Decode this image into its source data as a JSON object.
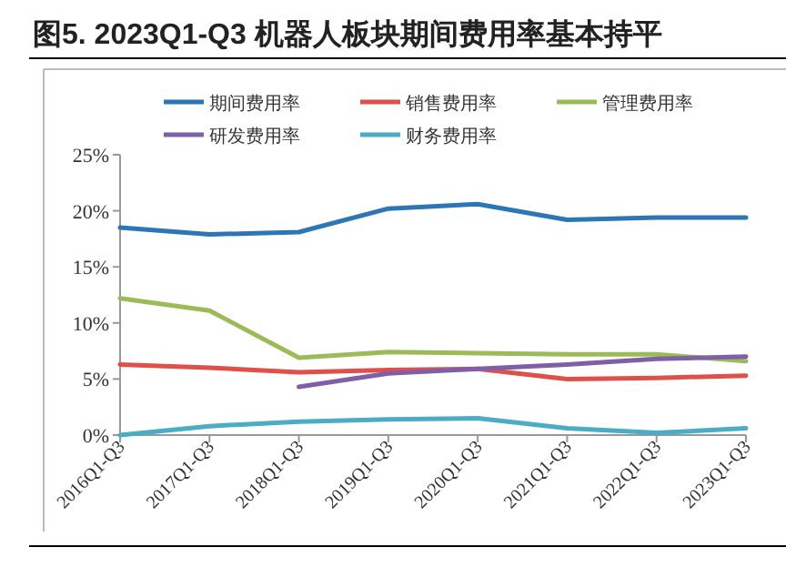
{
  "chart_data": {
    "type": "line",
    "title": "图5. 2023Q1-Q3 机器人板块期间费用率基本持平",
    "categories": [
      "2016Q1-Q3",
      "2017Q1-Q3",
      "2018Q1-Q3",
      "2019Q1-Q3",
      "2020Q1-Q3",
      "2021Q1-Q3",
      "2022Q1-Q3",
      "2023Q1-Q3"
    ],
    "series": [
      {
        "name": "期间费用率",
        "color": "#2e75b6",
        "values": [
          18.5,
          17.9,
          18.1,
          20.2,
          20.6,
          19.2,
          19.4,
          19.4
        ]
      },
      {
        "name": "销售费用率",
        "color": "#e0504a",
        "values": [
          6.3,
          6.0,
          5.6,
          5.8,
          5.9,
          5.0,
          5.1,
          5.3
        ]
      },
      {
        "name": "管理费用率",
        "color": "#9bbb59",
        "values": [
          12.2,
          11.1,
          6.9,
          7.4,
          7.3,
          7.2,
          7.2,
          6.6
        ]
      },
      {
        "name": "研发费用率",
        "color": "#7f5fa8",
        "values": [
          null,
          null,
          4.3,
          5.5,
          5.9,
          6.3,
          6.8,
          7.0
        ]
      },
      {
        "name": "财务费用率",
        "color": "#4bacc6",
        "values": [
          0.0,
          0.8,
          1.2,
          1.4,
          1.5,
          0.6,
          0.2,
          0.6
        ]
      }
    ],
    "ylim": [
      0,
      25
    ],
    "yticks": [
      {
        "value": 0,
        "label": "0%"
      },
      {
        "value": 5,
        "label": "5%"
      },
      {
        "value": 10,
        "label": "10%"
      },
      {
        "value": 15,
        "label": "15%"
      },
      {
        "value": 20,
        "label": "20%"
      },
      {
        "value": 25,
        "label": "25%"
      }
    ],
    "legend": "top",
    "grid": false,
    "line_style": "solid"
  }
}
